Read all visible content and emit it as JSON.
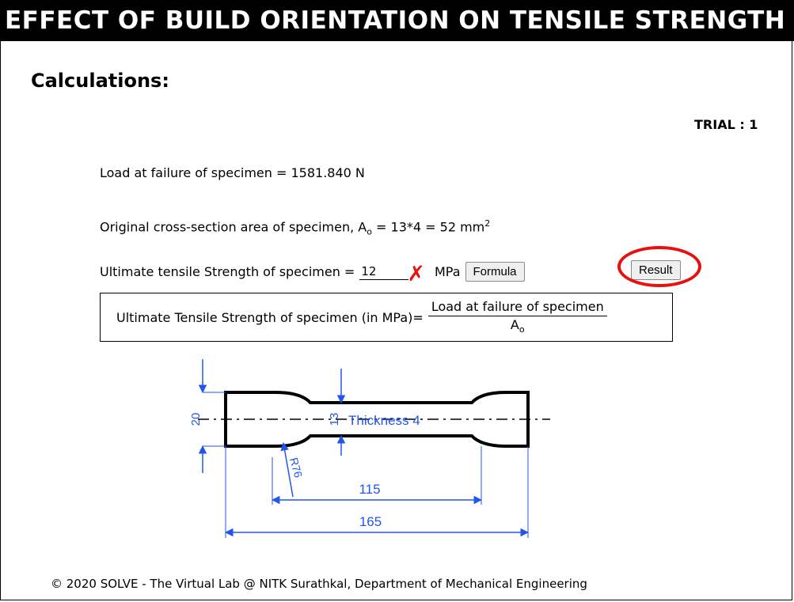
{
  "header": {
    "title": "EFFECT OF BUILD ORIENTATION ON TENSILE STRENGTH"
  },
  "section": {
    "title": "Calculations:"
  },
  "trial": {
    "label": "TRIAL : 1"
  },
  "calc": {
    "load_text": "Load at failure of specimen = 1581.840 N",
    "area_prefix": "Original cross-section area of specimen, A",
    "area_sub": "o",
    "area_value": " = 13*4 = 52 mm",
    "area_sup": "2",
    "uts_label": "Ultimate tensile Strength of specimen = ",
    "uts_input_value": "12",
    "wrong_mark": "✗",
    "unit": "MPa",
    "formula_button": "Formula",
    "result_button": "Result"
  },
  "formula": {
    "lhs": "Ultimate Tensile Strength of specimen (in MPa)=",
    "numerator": "Load at failure of specimen",
    "denominator_base": "A",
    "denominator_sub": "o"
  },
  "drawing": {
    "thickness_label": "Thickness 4",
    "dim_width": "20",
    "dim_gauge_width": "13",
    "dim_radius": "R76",
    "dim_gauge_length": "115",
    "dim_total_length": "165",
    "dimension_color": "#2255ee"
  },
  "footer": {
    "text": "© 2020 SOLVE - The Virtual Lab @ NITK Surathkal, Department of Mechanical Engineering"
  },
  "colors": {
    "banner_bg": "#000000",
    "banner_text": "#ffffff",
    "error_mark": "#e8110f",
    "highlight_ring": "#e8110f"
  }
}
